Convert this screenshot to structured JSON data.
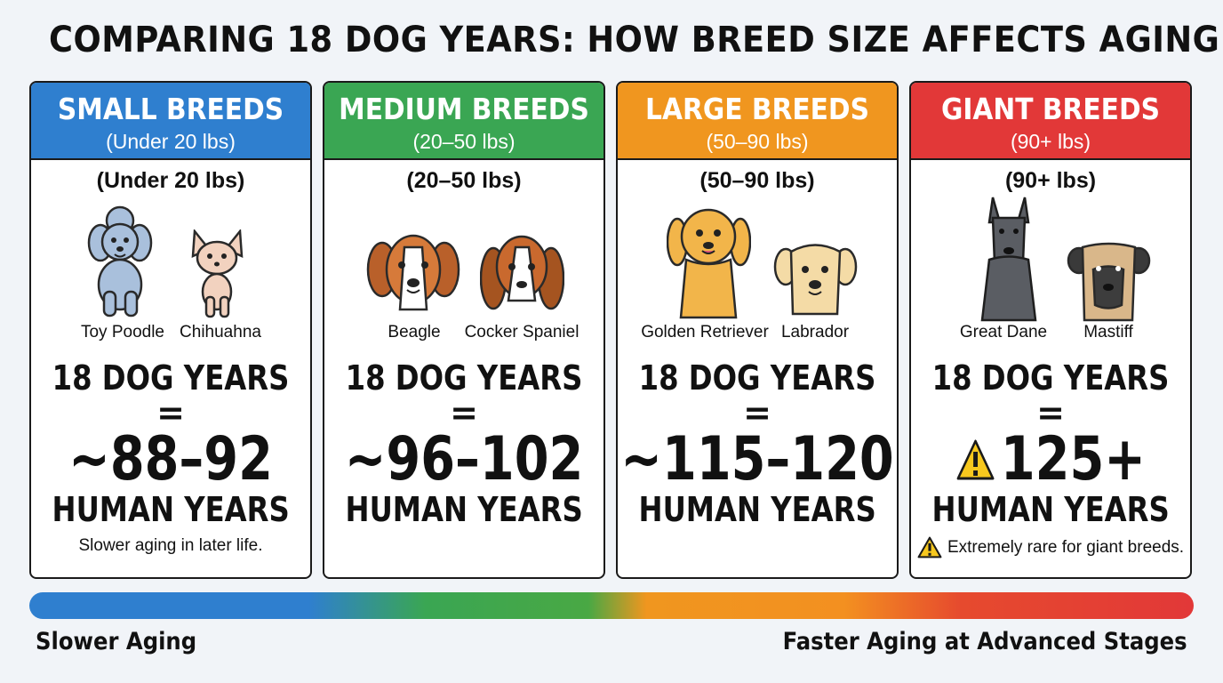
{
  "title": "COMPARING 18 DOG YEARS: HOW BREED SIZE AFFECTS AGING.",
  "cards": [
    {
      "name": "SMALL BREEDS",
      "range": "(Under 20 lbs)",
      "sub_range": "(Under 20 lbs)",
      "color": "#2f7fcf",
      "dogs": [
        "Toy Poodle",
        "Chihuahna"
      ],
      "dog_years": "18 DOG YEARS",
      "equals": "=",
      "human_value": "~88–92",
      "human_label": "HUMAN YEARS",
      "note": "Slower aging in later life."
    },
    {
      "name": "MEDIUM BREEDS",
      "range": "(20–50 lbs)",
      "sub_range": "(20–50 lbs)",
      "color": "#3aa653",
      "dogs": [
        "Beagle",
        "Cocker Spaniel"
      ],
      "dog_years": "18 DOG YEARS",
      "equals": "=",
      "human_value": "~96–102",
      "human_label": "HUMAN YEARS",
      "note": ""
    },
    {
      "name": "LARGE BREEDS",
      "range": "(50–90 lbs)",
      "sub_range": "(50–90 lbs)",
      "color": "#f0961f",
      "dogs": [
        "Golden Retriever",
        "Labrador"
      ],
      "dog_years": "18 DOG YEARS",
      "equals": "=",
      "human_value": "~115–120",
      "human_label": "HUMAN YEARS",
      "note": ""
    },
    {
      "name": "GIANT BREEDS",
      "range": "(90+ lbs)",
      "sub_range": "(90+ lbs)",
      "color": "#e23838",
      "dogs": [
        "Great Dane",
        "Mastiff"
      ],
      "dog_years": "18 DOG YEARS",
      "equals": "=",
      "human_value": "125+",
      "human_label": "HUMAN YEARS",
      "note": "Extremely rare for giant breeds."
    }
  ],
  "scale": {
    "left_label": "Slower Aging",
    "right_label": "Faster Aging at Advanced Stages"
  },
  "icons": [
    "warning-icon"
  ]
}
